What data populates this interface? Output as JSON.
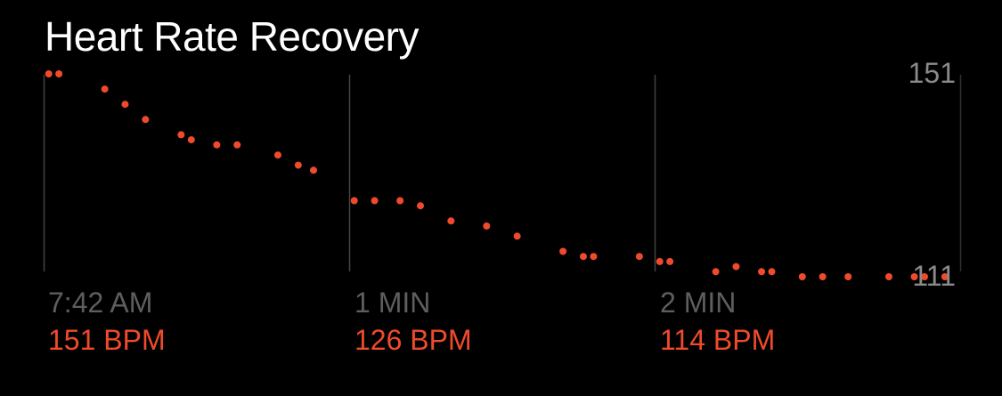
{
  "chart_data": {
    "type": "scatter",
    "title": "Heart Rate Recovery",
    "xlim": [
      0,
      180
    ],
    "ylim": [
      111,
      151
    ],
    "y_tick_labels": [
      "151",
      "111"
    ],
    "grid": "vertical lines at each minute",
    "color": "#f04a2c",
    "points": [
      {
        "t": 1,
        "bpm": 151
      },
      {
        "t": 3,
        "bpm": 151
      },
      {
        "t": 12,
        "bpm": 148
      },
      {
        "t": 16,
        "bpm": 145
      },
      {
        "t": 20,
        "bpm": 142
      },
      {
        "t": 27,
        "bpm": 139
      },
      {
        "t": 29,
        "bpm": 138
      },
      {
        "t": 34,
        "bpm": 137
      },
      {
        "t": 38,
        "bpm": 137
      },
      {
        "t": 46,
        "bpm": 135
      },
      {
        "t": 50,
        "bpm": 133
      },
      {
        "t": 53,
        "bpm": 132
      },
      {
        "t": 61,
        "bpm": 126
      },
      {
        "t": 65,
        "bpm": 126
      },
      {
        "t": 70,
        "bpm": 126
      },
      {
        "t": 74,
        "bpm": 125
      },
      {
        "t": 80,
        "bpm": 122
      },
      {
        "t": 87,
        "bpm": 121
      },
      {
        "t": 93,
        "bpm": 119
      },
      {
        "t": 102,
        "bpm": 116
      },
      {
        "t": 106,
        "bpm": 115
      },
      {
        "t": 108,
        "bpm": 115
      },
      {
        "t": 117,
        "bpm": 115
      },
      {
        "t": 121,
        "bpm": 114
      },
      {
        "t": 123,
        "bpm": 114
      },
      {
        "t": 132,
        "bpm": 112
      },
      {
        "t": 136,
        "bpm": 113
      },
      {
        "t": 141,
        "bpm": 112
      },
      {
        "t": 143,
        "bpm": 112
      },
      {
        "t": 149,
        "bpm": 111
      },
      {
        "t": 153,
        "bpm": 111
      },
      {
        "t": 158,
        "bpm": 111
      },
      {
        "t": 166,
        "bpm": 111
      },
      {
        "t": 171,
        "bpm": 111
      },
      {
        "t": 173,
        "bpm": 111
      },
      {
        "t": 177,
        "bpm": 111
      }
    ],
    "markers": [
      {
        "time_label": "7:42 AM",
        "bpm_label": "151 BPM"
      },
      {
        "time_label": "1 MIN",
        "bpm_label": "126 BPM"
      },
      {
        "time_label": "2 MIN",
        "bpm_label": "114 BPM"
      }
    ]
  }
}
